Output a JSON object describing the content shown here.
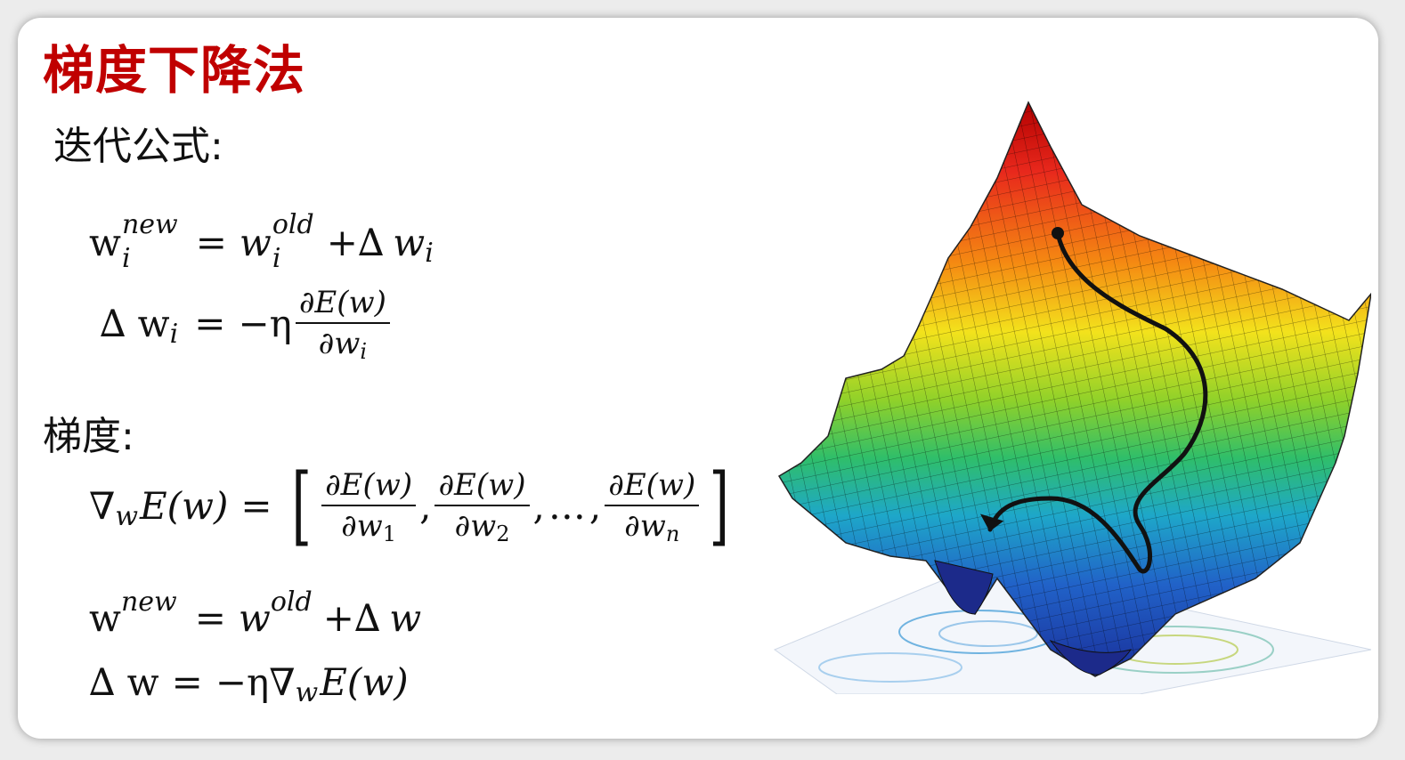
{
  "title": "梯度下降法",
  "iter_label": "迭代公式:",
  "grad_label": "梯度:",
  "eq1": {
    "w": "w",
    "i": "i",
    "new": "new",
    "eqsign": "=",
    "w2": "w",
    "old": "old",
    "plus_delta": "+∆",
    "w3": "w",
    "i3": "i"
  },
  "eq2": {
    "delta_w": "∆ w",
    "i": "i",
    "eqsign": "=",
    "neg_eta": "−η",
    "num": "∂E(w)",
    "den_w": "∂w",
    "den_i": "i"
  },
  "eq3": {
    "nabla": "∇",
    "w_sub": "w",
    "Ew": "E(w)",
    "eqsign": "=",
    "f1_num": "∂E(w)",
    "f1_den": "∂w",
    "f1_sub": "1",
    "comma": ",",
    "f2_num": "∂E(w)",
    "f2_den": "∂w",
    "f2_sub": "2",
    "dots": "…",
    "f3_num": "∂E(w)",
    "f3_den": "∂w",
    "f3_sub": "n"
  },
  "eq4": {
    "w": "w",
    "new": "new",
    "eqsign": "=",
    "w2": "w",
    "old": "old",
    "plus_delta": "+∆",
    "w3": "w"
  },
  "eq5": {
    "delta_w": "∆ w",
    "eqsign": "=",
    "neg_eta": "−η",
    "nabla": "∇",
    "w_sub": "w",
    "Ew": "E(w)"
  },
  "figure": {
    "icon": "gradient-descent-surface-icon",
    "path_color": "#111111"
  }
}
